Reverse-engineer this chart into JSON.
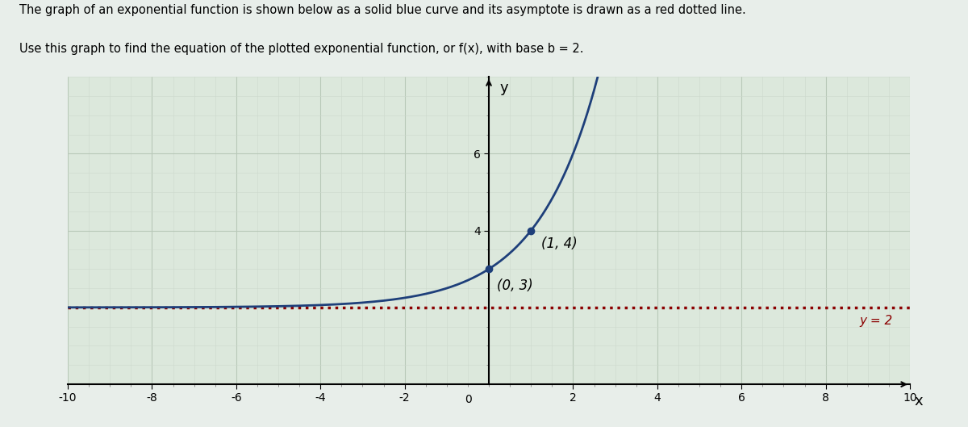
{
  "title_line1": "The graph of an exponential function is shown below as a solid blue curve and its asymptote is drawn as a red dotted line.",
  "title_line2": "Use this graph to find the equation of the plotted exponential function, or f(x), with base b = 2.",
  "xlim": [
    -10,
    10
  ],
  "ylim": [
    0,
    8
  ],
  "y_display_max": 7.5,
  "asymptote_y": 2,
  "asymptote_color": "#8b0000",
  "curve_color": "#1e3f7a",
  "point1": [
    0,
    3
  ],
  "point2": [
    1,
    4
  ],
  "point_color": "#1e3f7a",
  "xlabel": "x",
  "ylabel": "y",
  "grid_major_color": "#b8c8b8",
  "grid_minor_color": "#ccd8cc",
  "bg_color": "#e8eeea",
  "plot_bg": "#dce8dc",
  "asymptote_label": "y = 2",
  "major_tick_x": 2,
  "major_tick_y": 2,
  "minor_tick_x": 0.5,
  "minor_tick_y": 0.5,
  "figsize": [
    12.0,
    5.29
  ],
  "dpi": 100,
  "title_fontsize": 10.5
}
